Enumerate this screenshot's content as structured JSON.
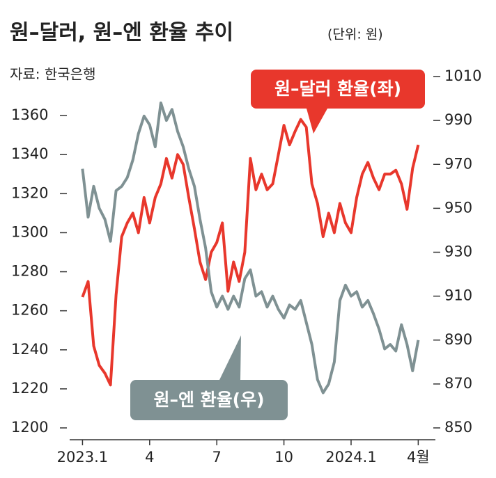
{
  "chart_data": {
    "type": "line",
    "title": "원–달러, 원–엔 환율 추이",
    "subtitle": "(단위: 원)",
    "source": "자료: 한국은행",
    "x": [
      0,
      0.25,
      0.5,
      0.75,
      1,
      1.25,
      1.5,
      1.75,
      2,
      2.25,
      2.5,
      2.75,
      3,
      3.25,
      3.5,
      3.75,
      4,
      4.25,
      4.5,
      4.75,
      5,
      5.25,
      5.5,
      5.75,
      6,
      6.25,
      6.5,
      6.75,
      7,
      7.25,
      7.5,
      7.75,
      8,
      8.25,
      8.5,
      8.75,
      9,
      9.25,
      9.5,
      9.75,
      10,
      10.25,
      10.5,
      10.75,
      11,
      11.25,
      11.5,
      11.75,
      12,
      12.25,
      12.5,
      12.75,
      13,
      13.25,
      13.5,
      13.75,
      14,
      14.25,
      14.5,
      14.75,
      15
    ],
    "xlim": [
      -0.2,
      15.3
    ],
    "xticks": [
      {
        "value": 0,
        "label": "2023.1"
      },
      {
        "value": 3,
        "label": "4"
      },
      {
        "value": 6,
        "label": "7"
      },
      {
        "value": 9,
        "label": "10"
      },
      {
        "value": 12,
        "label": "2024.1"
      },
      {
        "value": 15,
        "label": "4월"
      }
    ],
    "ylim": [
      1200,
      1380
    ],
    "yticks": [
      1200,
      1220,
      1240,
      1260,
      1280,
      1300,
      1320,
      1340,
      1360
    ],
    "y2lim": [
      850,
      1010
    ],
    "y2ticks": [
      850,
      870,
      890,
      910,
      930,
      950,
      970,
      990,
      1010
    ],
    "series": [
      {
        "name": "원–달러 환율(좌)",
        "color": "#e8372c",
        "axis": "y",
        "values": [
          1267,
          1275,
          1242,
          1232,
          1228,
          1222,
          1268,
          1298,
          1305,
          1310,
          1300,
          1318,
          1305,
          1318,
          1325,
          1338,
          1328,
          1340,
          1335,
          1318,
          1302,
          1285,
          1276,
          1290,
          1295,
          1305,
          1270,
          1285,
          1275,
          1290,
          1338,
          1322,
          1330,
          1322,
          1325,
          1340,
          1355,
          1345,
          1352,
          1358,
          1354,
          1325,
          1315,
          1298,
          1310,
          1300,
          1315,
          1305,
          1300,
          1318,
          1330,
          1336,
          1328,
          1322,
          1330,
          1330,
          1332,
          1325,
          1312,
          1333,
          1345
        ]
      },
      {
        "name": "원–엔 환율(우)",
        "color": "#7f9193",
        "axis": "y2",
        "values": [
          968,
          946,
          960,
          950,
          945,
          935,
          958,
          960,
          964,
          972,
          984,
          992,
          988,
          978,
          998,
          990,
          995,
          985,
          978,
          968,
          960,
          945,
          932,
          912,
          905,
          910,
          904,
          910,
          905,
          918,
          922,
          910,
          912,
          905,
          910,
          904,
          900,
          906,
          904,
          908,
          898,
          888,
          872,
          866,
          870,
          880,
          908,
          915,
          910,
          912,
          905,
          908,
          902,
          895,
          886,
          888,
          885,
          897,
          888,
          876,
          890
        ]
      }
    ]
  }
}
